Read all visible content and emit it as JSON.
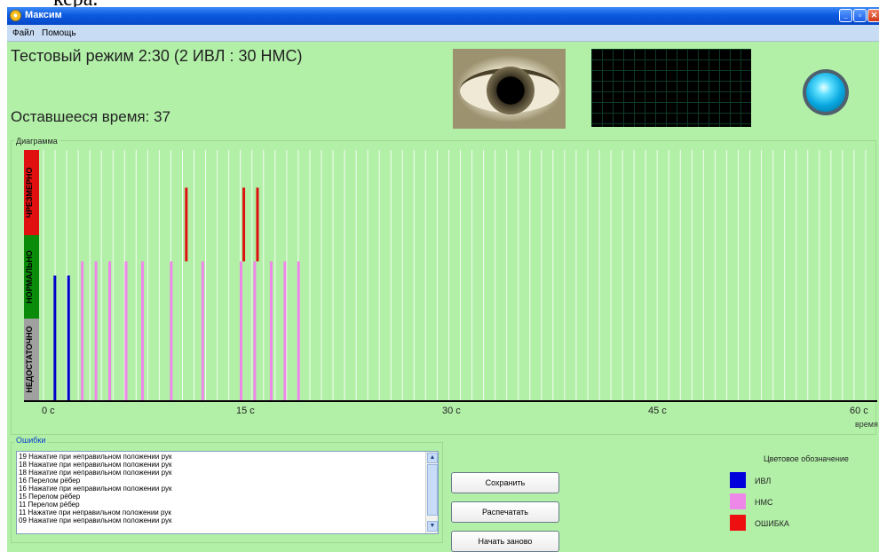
{
  "document": {
    "caption_fragment": "кера."
  },
  "window": {
    "title": "Максим",
    "controls": [
      "minimize",
      "maximize",
      "close"
    ]
  },
  "menu": {
    "items": [
      "Файл",
      "Помощь"
    ]
  },
  "status": {
    "mode_title": "Тестовый режим 2:30 (2 ИВЛ : 30 НМС)",
    "remaining_label": "Оставшееся время:",
    "remaining_value": "37"
  },
  "diagram": {
    "group_label": "Диаграмма",
    "zones": [
      "ЧРЕЗМЕРНО",
      "НОРМАЛЬНО",
      "НЕДОСТАТОЧНО"
    ],
    "x_ticks": [
      "0 с",
      "15 с",
      "30 с",
      "45 с",
      "60 с"
    ],
    "x_label": "время"
  },
  "chart_data": {
    "type": "bar",
    "xlim": [
      0,
      60
    ],
    "zones": [
      {
        "name": "НЕДОСТАТОЧНО",
        "from": 0,
        "to": 1,
        "color": "#a0a0a0"
      },
      {
        "name": "НОРМАЛЬНО",
        "from": 1,
        "to": 2,
        "color": "#0a8c0a"
      },
      {
        "name": "ЧРЕЗМЕРНО",
        "from": 2,
        "to": 3,
        "color": "#e01010"
      }
    ],
    "grid_lines": 72,
    "series": [
      {
        "name": "ИВЛ",
        "color": "#0000cc",
        "points": [
          {
            "t": 0.8,
            "level": 1.5
          },
          {
            "t": 1.8,
            "level": 1.5
          }
        ]
      },
      {
        "name": "НМС",
        "color": "#ee88e8",
        "points": [
          {
            "t": 2.8,
            "level": 1.67
          },
          {
            "t": 3.8,
            "level": 1.67
          },
          {
            "t": 4.8,
            "level": 1.67
          },
          {
            "t": 6.0,
            "level": 1.67
          },
          {
            "t": 7.2,
            "level": 1.67
          },
          {
            "t": 9.3,
            "level": 1.67
          },
          {
            "t": 11.6,
            "level": 1.67
          },
          {
            "t": 14.4,
            "level": 1.67
          },
          {
            "t": 15.4,
            "level": 1.67
          },
          {
            "t": 16.6,
            "level": 1.67
          },
          {
            "t": 17.6,
            "level": 1.67
          },
          {
            "t": 18.6,
            "level": 1.67
          }
        ]
      },
      {
        "name": "ОШИБКА",
        "color": "#dd1010",
        "points": [
          {
            "t": 10.4,
            "from": 1.67,
            "to": 2.55
          },
          {
            "t": 14.6,
            "from": 1.67,
            "to": 2.55
          },
          {
            "t": 15.6,
            "from": 1.67,
            "to": 2.55
          }
        ]
      }
    ]
  },
  "errors": {
    "title": "Ошибки",
    "items": [
      "19 Нажатие при неправильном положении рук",
      "18 Нажатие при неправильном положении рук",
      "18 Нажатие при неправильном положении рук",
      "16 Перелом рёбер",
      "16 Нажатие при неправильном положении рук",
      "15 Перелом рёбер",
      "11 Перелом рёбер",
      "11 Нажатие при неправильном положении рук",
      "09 Нажатие при неправильном положении рук"
    ]
  },
  "buttons": {
    "save": "Сохранить",
    "print": "Распечатать",
    "restart": "Начать заново"
  },
  "legend": {
    "title": "Цветовое обозначение",
    "items": [
      {
        "label": "ИВЛ",
        "color": "#0000dd"
      },
      {
        "label": "НМС",
        "color": "#ee88e8"
      },
      {
        "label": "ОШИБКА",
        "color": "#ee1010"
      }
    ]
  }
}
